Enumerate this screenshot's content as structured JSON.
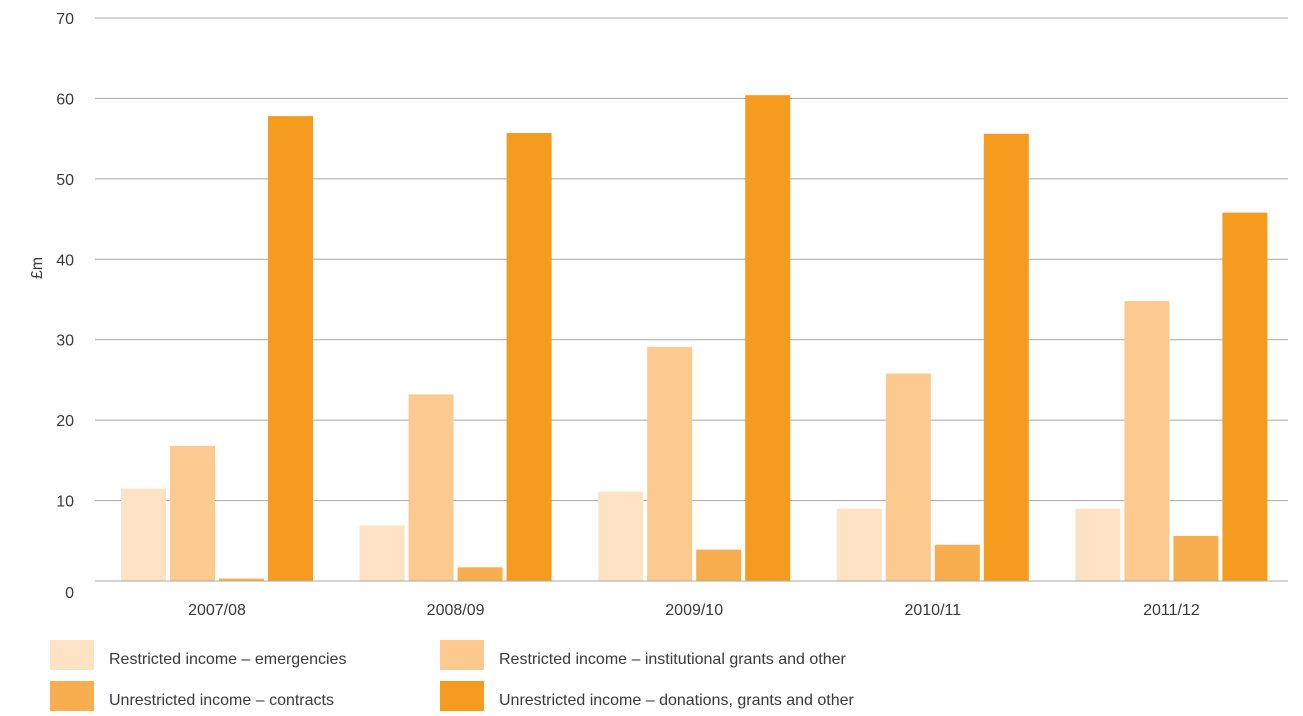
{
  "chart_data": {
    "type": "bar",
    "ylabel": "£m",
    "ylim": [
      0,
      70
    ],
    "yticks": [
      0,
      10,
      20,
      30,
      40,
      50,
      60,
      70
    ],
    "categories": [
      "2007/08",
      "2008/09",
      "2009/10",
      "2010/11",
      "2011/12"
    ],
    "grid": "horizontal",
    "legend_position": "bottom",
    "series": [
      {
        "name": "Restricted income – emergencies",
        "color": "#fde2c3",
        "values": [
          11.5,
          6.9,
          11.1,
          9.0,
          9.0
        ]
      },
      {
        "name": "Restricted income – institutional grants and other",
        "color": "#fcca8e",
        "values": [
          16.8,
          23.2,
          29.1,
          25.8,
          34.8
        ]
      },
      {
        "name": "Unrestricted income – contracts",
        "color": "#f8ad4e",
        "values": [
          0.3,
          1.7,
          3.9,
          4.5,
          5.6
        ]
      },
      {
        "name": "Unrestricted income – donations, grants and other",
        "color": "#f59c1e",
        "values": [
          57.8,
          55.7,
          60.4,
          55.6,
          45.8
        ]
      }
    ]
  }
}
